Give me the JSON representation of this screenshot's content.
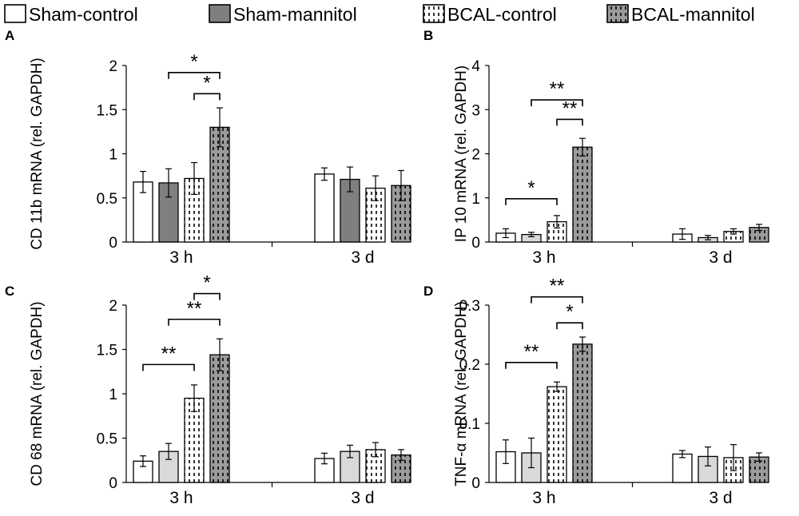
{
  "legend": [
    {
      "name": "Sham-control",
      "style": "white"
    },
    {
      "name": "Sham-mannitol",
      "style": "darkgray"
    },
    {
      "name": "BCAL-control",
      "style": "dotted"
    },
    {
      "name": "BCAL-mannitol",
      "style": "gray-dotted"
    }
  ],
  "colors": {
    "white": "#ffffff",
    "darkgray": "#7f7f7f",
    "lightgray": "#d9d9d9",
    "gray_dotted": "#9b9b9b",
    "stroke": "#000000"
  },
  "chart_data": [
    {
      "panel": "A",
      "type": "bar",
      "ylabel": "CD 11b mRNA (rel. GAPDH)",
      "ylim": [
        0,
        2
      ],
      "yticks": [
        "0",
        "0.5",
        "1",
        "1.5",
        "2"
      ],
      "ytick_values": [
        0,
        0.5,
        1,
        1.5,
        2
      ],
      "categories": [
        "3 h",
        "3 d"
      ],
      "series": [
        {
          "name": "Sham-control",
          "style": "white",
          "values": [
            0.68,
            0.77
          ],
          "errors": [
            0.12,
            0.07
          ]
        },
        {
          "name": "Sham-mannitol",
          "style": "darkgray",
          "values": [
            0.67,
            0.71
          ],
          "errors": [
            0.16,
            0.14
          ]
        },
        {
          "name": "BCAL-control",
          "style": "dotted",
          "values": [
            0.72,
            0.61
          ],
          "errors": [
            0.18,
            0.14
          ]
        },
        {
          "name": "BCAL-mannitol",
          "style": "gray-dotted",
          "values": [
            1.3,
            0.64
          ],
          "errors": [
            0.22,
            0.17
          ]
        }
      ],
      "significance": [
        {
          "from": 1,
          "to": 3,
          "label": "*",
          "y": 1.92
        },
        {
          "from": 2,
          "to": 3,
          "label": "*",
          "y": 1.68
        }
      ]
    },
    {
      "panel": "B",
      "type": "bar",
      "ylabel": "IP 10 mRNA (rel. GAPDH)",
      "ylim": [
        0,
        4
      ],
      "yticks": [
        "0",
        "1",
        "2",
        "3",
        "4"
      ],
      "ytick_values": [
        0,
        1,
        2,
        3,
        4
      ],
      "categories": [
        "3 h",
        "3 d"
      ],
      "series": [
        {
          "name": "Sham-control",
          "style": "white",
          "values": [
            0.2,
            0.18
          ],
          "errors": [
            0.1,
            0.12
          ]
        },
        {
          "name": "Sham-mannitol",
          "style": "lightgray",
          "values": [
            0.17,
            0.1
          ],
          "errors": [
            0.05,
            0.05
          ]
        },
        {
          "name": "BCAL-control",
          "style": "dotted",
          "values": [
            0.46,
            0.24
          ],
          "errors": [
            0.14,
            0.06
          ]
        },
        {
          "name": "BCAL-mannitol",
          "style": "gray-dotted",
          "values": [
            2.15,
            0.33
          ],
          "errors": [
            0.2,
            0.07
          ]
        }
      ],
      "significance": [
        {
          "from": 0,
          "to": 2,
          "label": "*",
          "y": 0.98
        },
        {
          "from": 1,
          "to": 3,
          "label": "**",
          "y": 3.22
        },
        {
          "from": 2,
          "to": 3,
          "label": "**",
          "y": 2.78
        }
      ]
    },
    {
      "panel": "C",
      "type": "bar",
      "ylabel": "CD 68 mRNA (rel. GAPDH)",
      "ylim": [
        0,
        2
      ],
      "yticks": [
        "0",
        "0.5",
        "1",
        "1.5",
        "2"
      ],
      "ytick_values": [
        0,
        0.5,
        1,
        1.5,
        2
      ],
      "categories": [
        "3 h",
        "3 d"
      ],
      "series": [
        {
          "name": "Sham-control",
          "style": "white",
          "values": [
            0.24,
            0.27
          ],
          "errors": [
            0.06,
            0.06
          ]
        },
        {
          "name": "Sham-mannitol",
          "style": "lightgray",
          "values": [
            0.35,
            0.35
          ],
          "errors": [
            0.09,
            0.07
          ]
        },
        {
          "name": "BCAL-control",
          "style": "dotted",
          "values": [
            0.95,
            0.37
          ],
          "errors": [
            0.15,
            0.08
          ]
        },
        {
          "name": "BCAL-mannitol",
          "style": "gray-dotted",
          "values": [
            1.44,
            0.31
          ],
          "errors": [
            0.18,
            0.06
          ]
        }
      ],
      "significance": [
        {
          "from": 0,
          "to": 2,
          "label": "**",
          "y": 1.33
        },
        {
          "from": 1,
          "to": 3,
          "label": "**",
          "y": 1.84
        },
        {
          "from": 2,
          "to": 3,
          "label": "*",
          "y": 2.13
        }
      ]
    },
    {
      "panel": "D",
      "type": "bar",
      "ylabel": "TNF-α mRNA (rel. GAPDH)",
      "ylim": [
        0,
        0.3
      ],
      "yticks": [
        "0",
        "0.1",
        "0.2",
        "0.3"
      ],
      "ytick_values": [
        0,
        0.1,
        0.2,
        0.3
      ],
      "categories": [
        "3 h",
        "3 d"
      ],
      "series": [
        {
          "name": "Sham-control",
          "style": "white",
          "values": [
            0.052,
            0.048
          ],
          "errors": [
            0.02,
            0.006
          ]
        },
        {
          "name": "Sham-mannitol",
          "style": "lightgray",
          "values": [
            0.05,
            0.044
          ],
          "errors": [
            0.025,
            0.016
          ]
        },
        {
          "name": "BCAL-control",
          "style": "dotted",
          "values": [
            0.162,
            0.042
          ],
          "errors": [
            0.008,
            0.022
          ]
        },
        {
          "name": "BCAL-mannitol",
          "style": "gray-dotted",
          "values": [
            0.234,
            0.043
          ],
          "errors": [
            0.012,
            0.007
          ]
        }
      ],
      "significance": [
        {
          "from": 0,
          "to": 2,
          "label": "**",
          "y": 0.203
        },
        {
          "from": 1,
          "to": 3,
          "label": "**",
          "y": 0.314
        },
        {
          "from": 2,
          "to": 3,
          "label": "*",
          "y": 0.27
        }
      ]
    }
  ]
}
